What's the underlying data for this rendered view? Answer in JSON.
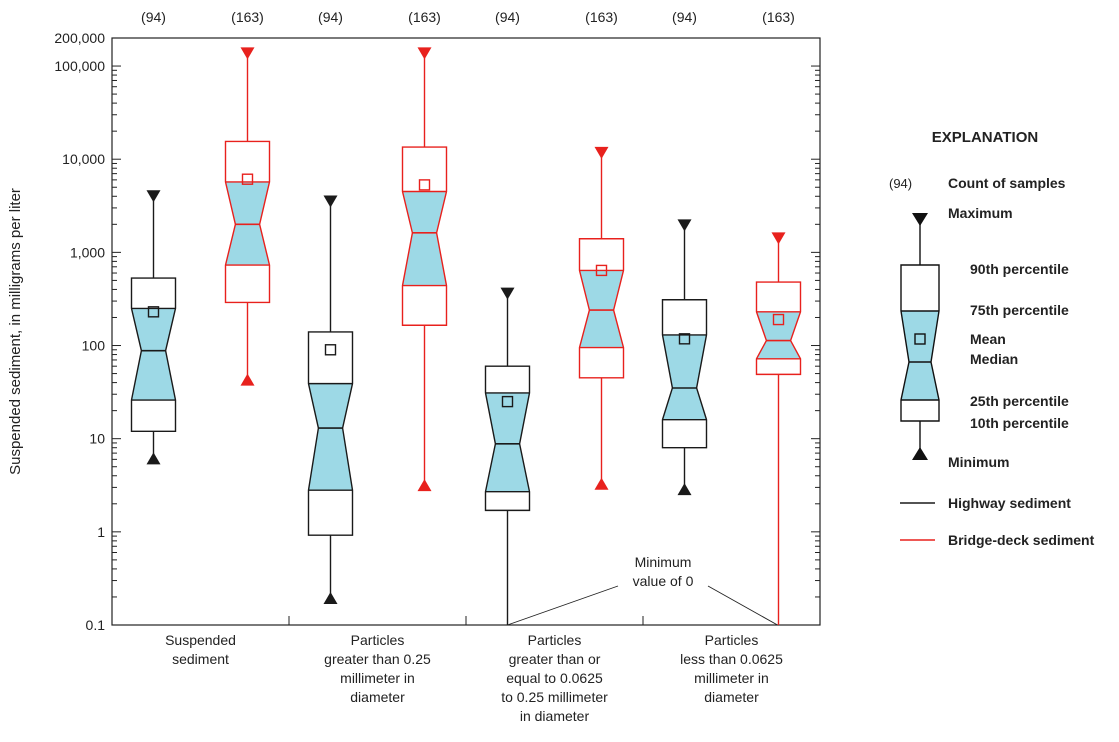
{
  "chart_data": {
    "type": "box",
    "ylabel": "Suspended sediment, in milligrams per liter",
    "yscale": "log",
    "ylim": [
      0.1,
      200000
    ],
    "yticks": [
      0.1,
      1,
      10,
      100,
      1000,
      10000,
      100000,
      200000
    ],
    "ytick_labels": [
      "0.1",
      "1",
      "10",
      "100",
      "1,000",
      "10,000",
      "100,000",
      "200,000"
    ],
    "categories": [
      [
        "Suspended",
        "sediment"
      ],
      [
        "Particles",
        "greater than 0.25",
        "millimeter in",
        "diameter"
      ],
      [
        "Particles",
        "greater than or",
        "equal to 0.0625",
        "to 0.25 millimeter",
        "in diameter"
      ],
      [
        "Particles",
        "less than 0.0625",
        "millimeter in",
        "diameter"
      ]
    ],
    "series": [
      {
        "name": "Highway sediment",
        "color": "#1a1a1a",
        "count_label": "(94)",
        "boxes": [
          {
            "p10": 12,
            "p25": 26,
            "median": 88,
            "p75": 250,
            "p90": 530,
            "mean": 230,
            "min": 6,
            "max": 4100
          },
          {
            "p10": 0.92,
            "p25": 2.8,
            "median": 13,
            "p75": 39,
            "p90": 140,
            "mean": 90,
            "min": 0.19,
            "max": 3600
          },
          {
            "p10": 1.7,
            "p25": 2.7,
            "median": 8.8,
            "p75": 31,
            "p90": 60,
            "mean": 25,
            "min": 0,
            "max": 370
          },
          {
            "p10": 8,
            "p25": 16,
            "median": 35,
            "p75": 130,
            "p90": 310,
            "mean": 118,
            "min": 2.8,
            "max": 2000
          }
        ]
      },
      {
        "name": "Bridge-deck sediment",
        "color": "#e8211d",
        "count_label": "(163)",
        "boxes": [
          {
            "p10": 290,
            "p25": 730,
            "median": 2000,
            "p75": 5700,
            "p90": 15500,
            "mean": 6100,
            "min": 42,
            "max": 140000
          },
          {
            "p10": 165,
            "p25": 440,
            "median": 1620,
            "p75": 4500,
            "p90": 13500,
            "mean": 5300,
            "min": 3.1,
            "max": 140000
          },
          {
            "p10": 45,
            "p25": 95,
            "median": 240,
            "p75": 640,
            "p90": 1400,
            "mean": 640,
            "min": 3.2,
            "max": 12000
          },
          {
            "p10": 49,
            "p25": 72,
            "median": 113,
            "p75": 230,
            "p90": 480,
            "mean": 190,
            "min": 0,
            "max": 1450
          }
        ]
      }
    ],
    "annotation": [
      "Minimum",
      "value of 0"
    ],
    "box_fill": "#9dd9e6"
  },
  "legend": {
    "title": "EXPLANATION",
    "count_example": "(94)",
    "count_label": "Count of samples",
    "maximum": "Maximum",
    "p90": "90th percentile",
    "p75": "75th percentile",
    "mean": "Mean",
    "median": "Median",
    "p25": "25th percentile",
    "p10": "10th percentile",
    "minimum": "Minimum",
    "highway": "Highway sediment",
    "bridge": "Bridge-deck sediment"
  }
}
